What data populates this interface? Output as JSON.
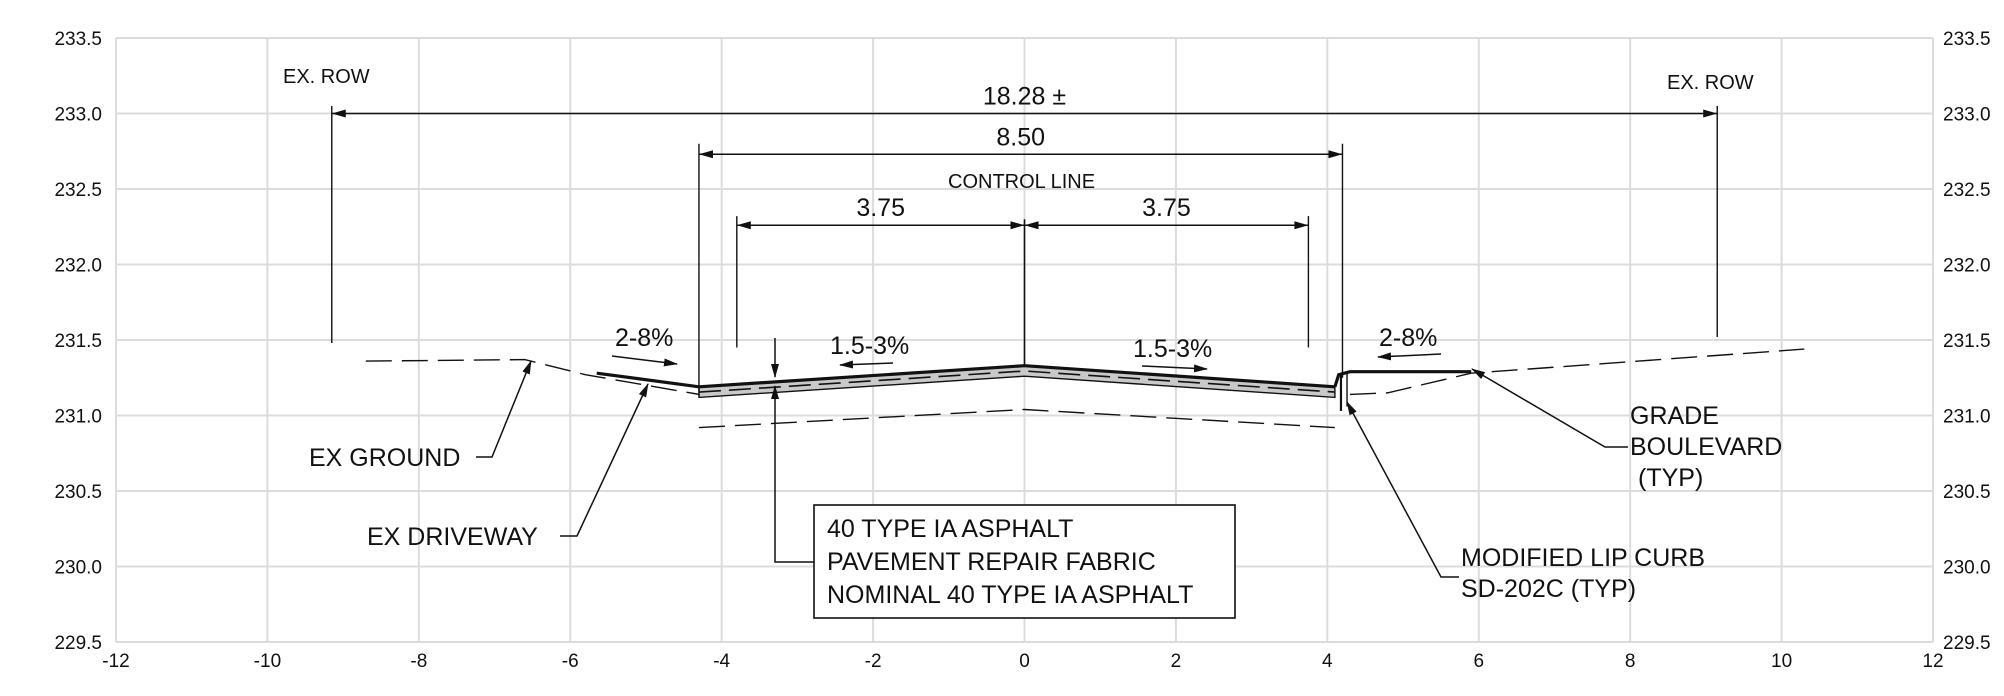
{
  "chart_data": {
    "type": "cross-section",
    "xlim": [
      -12,
      12
    ],
    "ylim": [
      229.5,
      233.5
    ],
    "x_ticks": [
      "-12",
      "-10",
      "-8",
      "-6",
      "-4",
      "-2",
      "0",
      "2",
      "4",
      "6",
      "8",
      "10",
      "12"
    ],
    "y_ticks_left": [
      "233.5",
      "233.0",
      "232.5",
      "232.0",
      "231.5",
      "231.0",
      "230.5",
      "230.0",
      "229.5"
    ],
    "y_ticks_right": [
      "233.5",
      "233.0",
      "232.5",
      "232.0",
      "231.5",
      "231.0",
      "230.5",
      "230.0",
      "229.5"
    ],
    "grid": true,
    "existing_ground": [
      [
        -8.7,
        231.36
      ],
      [
        -6.6,
        231.37
      ],
      [
        -5.8,
        231.27
      ],
      [
        -4.3,
        231.14
      ],
      [
        -4.3,
        231.13
      ]
    ],
    "existing_ground_right": [
      [
        4.3,
        231.14
      ],
      [
        4.8,
        231.15
      ],
      [
        5.9,
        231.28
      ],
      [
        10.3,
        231.44
      ]
    ],
    "finished_surface": [
      [
        -5.65,
        231.28
      ],
      [
        -4.3,
        231.19
      ],
      [
        0,
        231.33
      ],
      [
        4.1,
        231.19
      ]
    ],
    "curb": [
      [
        4.1,
        231.19
      ],
      [
        4.15,
        231.27
      ],
      [
        4.3,
        231.29
      ],
      [
        5.9,
        231.29
      ]
    ],
    "subgrade": [
      [
        -4.3,
        230.92
      ],
      [
        0,
        231.04
      ],
      [
        4.1,
        230.92
      ]
    ],
    "dimensions": [
      {
        "id": "row",
        "label": "18.28 ±",
        "from": -9.15,
        "to": 9.15,
        "y": 233.0
      },
      {
        "id": "pavement",
        "label": "8.50",
        "from": -4.3,
        "to": 4.2,
        "y": 232.73
      },
      {
        "id": "lane-left",
        "label": "3.75",
        "from": -3.8,
        "to": 0,
        "y": 232.26
      },
      {
        "id": "lane-right",
        "label": "3.75",
        "from": 0,
        "to": 3.75,
        "y": 232.26
      }
    ],
    "labels": {
      "ex_row_left": "EX. ROW",
      "ex_row_right": "EX. ROW",
      "control_line": "CONTROL LINE",
      "slope_left": "2-8%",
      "slope_lane_left": "1.5-3%",
      "slope_lane_right": "1.5-3%",
      "slope_right": "2-8%",
      "ex_ground": "EX GROUND",
      "ex_driveway": "EX DRIVEWAY",
      "note_line1": "40 TYPE IA ASPHALT",
      "note_line2": "PAVEMENT REPAIR FABRIC",
      "note_line3": "NOMINAL 40 TYPE IA ASPHALT",
      "grade_line1": "GRADE",
      "grade_line2": "BOULEVARD",
      "grade_line3": "(TYP)",
      "curb_line1": "MODIFIED LIP CURB",
      "curb_line2": "SD-202C (TYP)"
    }
  }
}
